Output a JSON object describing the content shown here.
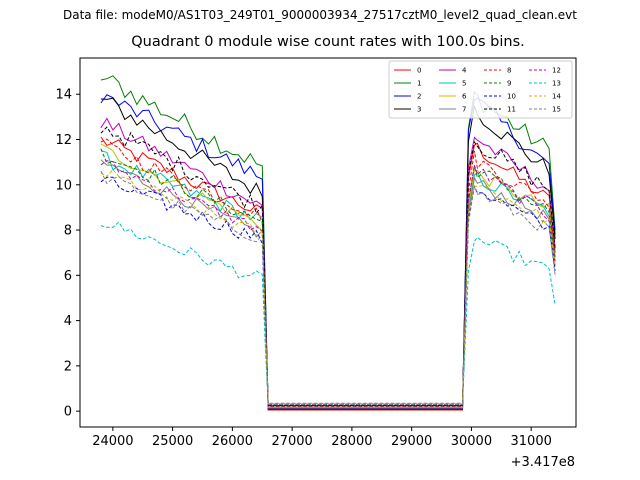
{
  "figure": {
    "suptitle": "Data file: modeM0/AS1T03_249T01_9000003934_27517cztM0_level2_quad_clean.evt"
  },
  "chart_data": {
    "type": "line",
    "title": "Quadrant 0 module wise count rates with 100.0s bins.",
    "xlabel": "",
    "ylabel": "",
    "x_offset_label": "+3.417e8",
    "xlim": [
      23450,
      31750
    ],
    "ylim": [
      -0.7,
      15.6
    ],
    "xticks": [
      24000,
      25000,
      26000,
      27000,
      28000,
      29000,
      30000,
      31000
    ],
    "yticks": [
      0,
      2,
      4,
      6,
      8,
      10,
      12,
      14
    ],
    "legend": {
      "position": "top-right",
      "columns": 4
    },
    "segment1_x": [
      23800,
      23900,
      24000,
      24100,
      24200,
      24300,
      24400,
      24500,
      24600,
      24700,
      24800,
      24900,
      25000,
      25100,
      25200,
      25300,
      25400,
      25500,
      25600,
      25700,
      25800,
      25900,
      26000,
      26100,
      26200,
      26300,
      26400,
      26500,
      26550
    ],
    "segment2_x": [
      30050,
      30100,
      30200,
      30300,
      30400,
      30500,
      30600,
      30700,
      30800,
      30900,
      31000,
      31100,
      31200,
      31300,
      31400
    ],
    "gap": {
      "start": 26600,
      "end": 29850,
      "value": 0.05
    },
    "series": [
      {
        "name": "0",
        "color": "#ff0000",
        "dash": false,
        "seg1_start": 12.0,
        "seg1_end": 8.7,
        "seg2_start": 11.8,
        "seg2_end": 9.3,
        "drop_to": 7.2,
        "noise": 0.35
      },
      {
        "name": "1",
        "color": "#008000",
        "dash": false,
        "seg1_start": 14.8,
        "seg1_end": 10.8,
        "seg2_start": 14.0,
        "seg2_end": 11.5,
        "drop_to": 8.0,
        "noise": 0.45
      },
      {
        "name": "2",
        "color": "#0000ff",
        "dash": false,
        "seg1_start": 14.0,
        "seg1_end": 10.3,
        "seg2_start": 13.9,
        "seg2_end": 10.8,
        "drop_to": 7.8,
        "noise": 0.4
      },
      {
        "name": "3",
        "color": "#000000",
        "dash": false,
        "seg1_start": 13.8,
        "seg1_end": 9.6,
        "seg2_start": 13.4,
        "seg2_end": 10.6,
        "drop_to": 7.6,
        "noise": 0.4
      },
      {
        "name": "4",
        "color": "#bf00bf",
        "dash": false,
        "seg1_start": 12.8,
        "seg1_end": 9.0,
        "seg2_start": 12.2,
        "seg2_end": 9.8,
        "drop_to": 7.0,
        "noise": 0.35
      },
      {
        "name": "5",
        "color": "#00bfbf",
        "dash": false,
        "seg1_start": 11.2,
        "seg1_end": 8.4,
        "seg2_start": 10.4,
        "seg2_end": 8.8,
        "drop_to": 6.6,
        "noise": 0.35
      },
      {
        "name": "6",
        "color": "#bfbf00",
        "dash": false,
        "seg1_start": 11.6,
        "seg1_end": 8.2,
        "seg2_start": 10.6,
        "seg2_end": 8.9,
        "drop_to": 6.8,
        "noise": 0.3
      },
      {
        "name": "7",
        "color": "#808080",
        "dash": false,
        "seg1_start": 11.0,
        "seg1_end": 7.8,
        "seg2_start": 10.2,
        "seg2_end": 8.5,
        "drop_to": 6.4,
        "noise": 0.3
      },
      {
        "name": "8",
        "color": "#ff0000",
        "dash": true,
        "seg1_start": 11.8,
        "seg1_end": 8.6,
        "seg2_start": 11.2,
        "seg2_end": 9.2,
        "drop_to": 7.0,
        "noise": 0.35
      },
      {
        "name": "9",
        "color": "#008000",
        "dash": true,
        "seg1_start": 11.4,
        "seg1_end": 8.4,
        "seg2_start": 10.8,
        "seg2_end": 8.8,
        "drop_to": 6.8,
        "noise": 0.35
      },
      {
        "name": "10",
        "color": "#0000ff",
        "dash": true,
        "seg1_start": 10.2,
        "seg1_end": 7.6,
        "seg2_start": 10.0,
        "seg2_end": 8.0,
        "drop_to": 6.2,
        "noise": 0.35
      },
      {
        "name": "11",
        "color": "#000000",
        "dash": true,
        "seg1_start": 12.6,
        "seg1_end": 9.0,
        "seg2_start": 12.0,
        "seg2_end": 9.8,
        "drop_to": 7.2,
        "noise": 0.4
      },
      {
        "name": "12",
        "color": "#bf00bf",
        "dash": true,
        "seg1_start": 11.0,
        "seg1_end": 8.0,
        "seg2_start": 10.8,
        "seg2_end": 8.6,
        "drop_to": 6.6,
        "noise": 0.3
      },
      {
        "name": "13",
        "color": "#00bfbf",
        "dash": true,
        "seg1_start": 8.4,
        "seg1_end": 5.8,
        "seg2_start": 7.7,
        "seg2_end": 6.2,
        "drop_to": 4.7,
        "noise": 0.3
      },
      {
        "name": "14",
        "color": "#bfbf00",
        "dash": true,
        "seg1_start": 10.6,
        "seg1_end": 7.8,
        "seg2_start": 10.2,
        "seg2_end": 8.4,
        "drop_to": 6.4,
        "noise": 0.3
      },
      {
        "name": "15",
        "color": "#808080",
        "dash": true,
        "seg1_start": 10.4,
        "seg1_end": 7.6,
        "seg2_start": 9.8,
        "seg2_end": 8.0,
        "drop_to": 6.0,
        "noise": 0.3
      }
    ]
  }
}
